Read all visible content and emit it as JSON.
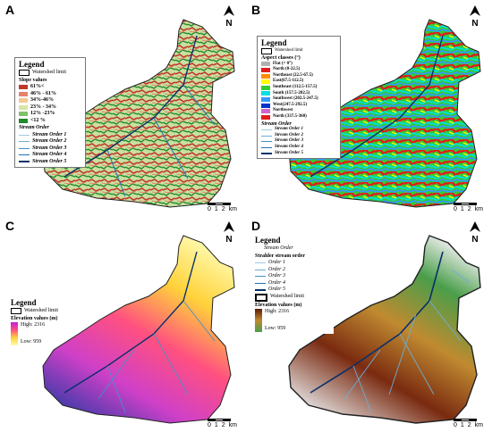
{
  "panels": [
    {
      "label": "A",
      "north": "N",
      "scale": {
        "labels": [
          "0",
          "1",
          "2",
          "km"
        ]
      },
      "legend": {
        "title": "Legend",
        "watershed": "Watershed limit",
        "classes_title": "Slope values",
        "classes": [
          {
            "label": "61%<",
            "color": "#c0392b"
          },
          {
            "label": "46% - 61%",
            "color": "#e8806a"
          },
          {
            "label": "34%-46%",
            "color": "#f5c896"
          },
          {
            "label": "23% - 34%",
            "color": "#d8e6a6"
          },
          {
            "label": "12% -23%",
            "color": "#7ec26b"
          },
          {
            "label": "<12 %",
            "color": "#1f8a2e"
          }
        ],
        "stream_title": "Stream Order",
        "streams": [
          "Stream Order 1",
          "Stream Order 2",
          "Stream Order 3",
          "Stream Order 4",
          "Stream Order 5"
        ]
      }
    },
    {
      "label": "B",
      "north": "N",
      "scale": {
        "labels": [
          "0",
          "1",
          "2",
          "km"
        ]
      },
      "legend": {
        "title": "Legend",
        "watershed": "Watershed limit",
        "classes_title": "Aspect classes (°)",
        "classes": [
          {
            "label": "Flat (= 0°)",
            "color": "#b0b0b0"
          },
          {
            "label": "North (0-22.5)",
            "color": "#e31a1c"
          },
          {
            "label": "Northeast (22.5-67.5)",
            "color": "#ff8c00"
          },
          {
            "label": "East(67.5-112.5)",
            "color": "#ffff00"
          },
          {
            "label": "Southeast (112.5-157.5)",
            "color": "#33cc33"
          },
          {
            "label": "South (157.5-202.5)",
            "color": "#00e0e0"
          },
          {
            "label": "Southwest (202.5-247.5)",
            "color": "#3399ff"
          },
          {
            "label": "West(247.5-292.5)",
            "color": "#0033cc"
          },
          {
            "label": "Northwest",
            "color": "#cc66cc"
          },
          {
            "label": "North (337.5-360)",
            "color": "#e31a1c"
          }
        ],
        "stream_title": "Stream Order",
        "streams": [
          "Stream Order 1",
          "Stream Order 2",
          "Stream Order 3",
          "Stream Order 4",
          "Stream Order 5"
        ]
      }
    },
    {
      "label": "C",
      "north": "N",
      "scale": {
        "labels": [
          "0",
          "1",
          "2",
          "km"
        ]
      },
      "legend": {
        "title": "Legend",
        "watershed": "Watershed limit",
        "elev_title": "Elevation values (m)",
        "high": "High: 2316",
        "low": "Low: 959"
      }
    },
    {
      "label": "D",
      "north": "N",
      "scale": {
        "labels": [
          "0",
          "1",
          "2",
          "km"
        ]
      },
      "legend": {
        "title": "Legend",
        "stream_title": "Stream Order",
        "strahler_title": "Strahler stream order",
        "orders": [
          "Order 1",
          "Order 2",
          "Order 3",
          "Order 4",
          "Order 5"
        ],
        "watershed": "Watershed limit",
        "elev_title": "Elevation values (m)",
        "high": "High: 2316",
        "low": "Low: 959"
      }
    }
  ],
  "colors": {
    "stream_1": "#9ecae1",
    "stream_2": "#6baed6",
    "stream_3": "#4292c6",
    "stream_4": "#2171b5",
    "stream_5": "#08306b"
  }
}
